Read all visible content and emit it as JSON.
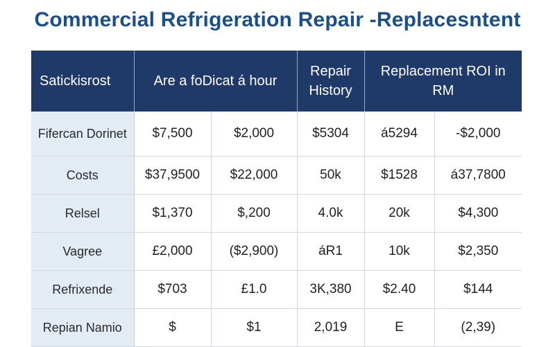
{
  "title": "Commercial Refrigeration Repair -Replacesntent",
  "table": {
    "headers": [
      "Satickisrost",
      "Are a foDicat á hour",
      "Repair History",
      "Replacement ROI in RM"
    ],
    "rows": [
      {
        "label": "Fifercan Dorinet",
        "cells": [
          "$7,500",
          "$2,000",
          "$5304",
          "á5294",
          "-$2,000"
        ]
      },
      {
        "label": "Costs",
        "cells": [
          "$37,9500",
          "$22,000",
          "50k",
          "$1528",
          "á37,7800"
        ]
      },
      {
        "label": "Relsel",
        "cells": [
          "$1,370",
          "$,200",
          "4.0k",
          "20k",
          "$4,300"
        ]
      },
      {
        "label": "Vagree",
        "cells": [
          "£2,000",
          "($2,900)",
          "áR1",
          "10k",
          "$2,350"
        ]
      },
      {
        "label": "Refrixende",
        "cells": [
          "$703",
          "£1.0",
          "3K,380",
          "$2.40",
          "$144"
        ]
      },
      {
        "label": "Repian Namio",
        "cells": [
          "$",
          "$1",
          "2,019",
          "E",
          "(2,39)"
        ]
      }
    ]
  }
}
